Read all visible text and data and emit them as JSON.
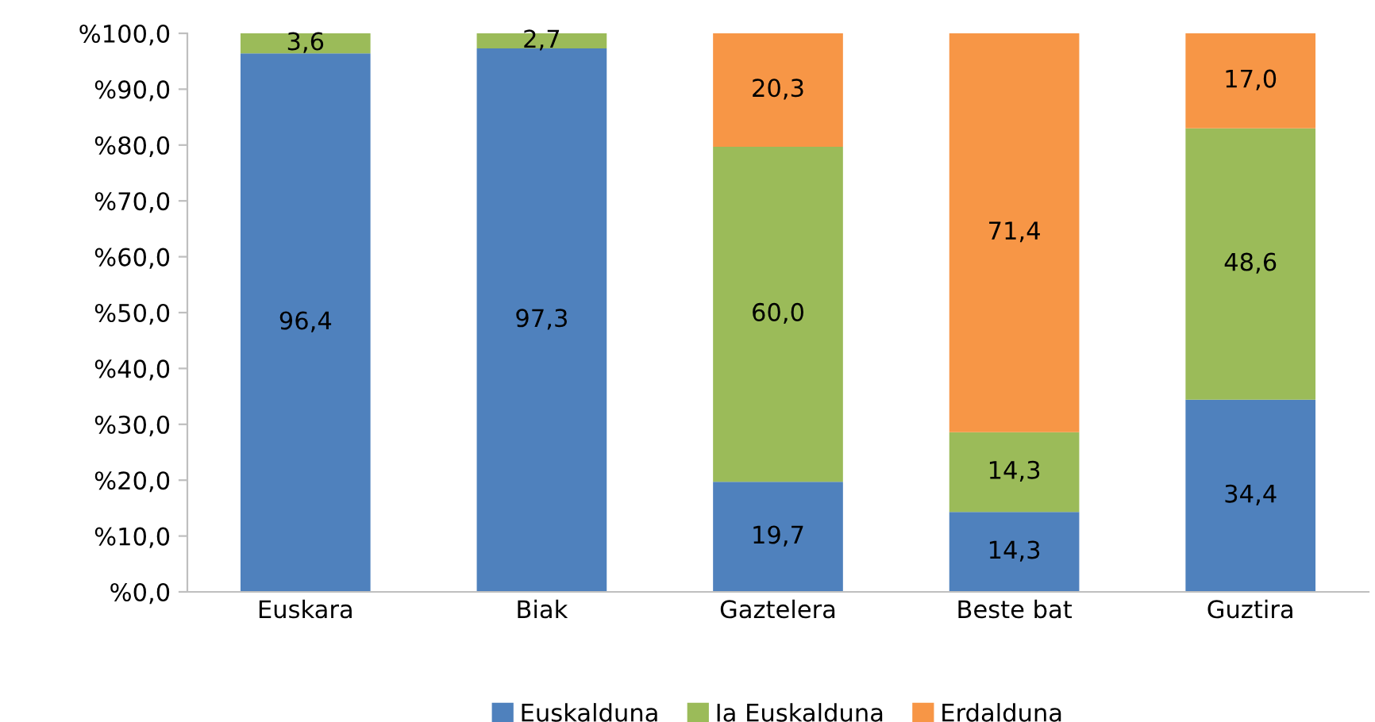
{
  "chart_data": {
    "type": "bar",
    "stacked": true,
    "categories": [
      "Euskara",
      "Biak",
      "Gaztelera",
      "Beste bat",
      "Guztira"
    ],
    "series": [
      {
        "name": "Euskalduna",
        "color": "#4f81bd",
        "values": [
          96.4,
          97.3,
          19.7,
          14.3,
          34.4
        ],
        "value_labels": [
          "96,4",
          "97,3",
          "19,7",
          "14,3",
          "34,4"
        ]
      },
      {
        "name": "Ia Euskalduna",
        "color": "#9bbb59",
        "values": [
          3.6,
          2.7,
          60.0,
          14.3,
          48.6
        ],
        "value_labels": [
          "3,6",
          "2,7",
          "60,0",
          "14,3",
          "48,6"
        ]
      },
      {
        "name": "Erdalduna",
        "color": "#f79646",
        "values": [
          null,
          null,
          20.3,
          71.4,
          17.0
        ],
        "value_labels": [
          null,
          null,
          "20,3",
          "71,4",
          "17,0"
        ]
      }
    ],
    "ylim": [
      0,
      100
    ],
    "yticks": [
      {
        "value": 0,
        "label": "%0,0"
      },
      {
        "value": 10,
        "label": "%10,0"
      },
      {
        "value": 20,
        "label": "%20,0"
      },
      {
        "value": 30,
        "label": "%30,0"
      },
      {
        "value": 40,
        "label": "%40,0"
      },
      {
        "value": 50,
        "label": "%50,0"
      },
      {
        "value": 60,
        "label": "%60,0"
      },
      {
        "value": 70,
        "label": "%70,0"
      },
      {
        "value": 80,
        "label": "%80,0"
      },
      {
        "value": 90,
        "label": "%90,0"
      },
      {
        "value": 100,
        "label": "%100,0"
      }
    ],
    "grid": false,
    "legend": "bottom"
  }
}
